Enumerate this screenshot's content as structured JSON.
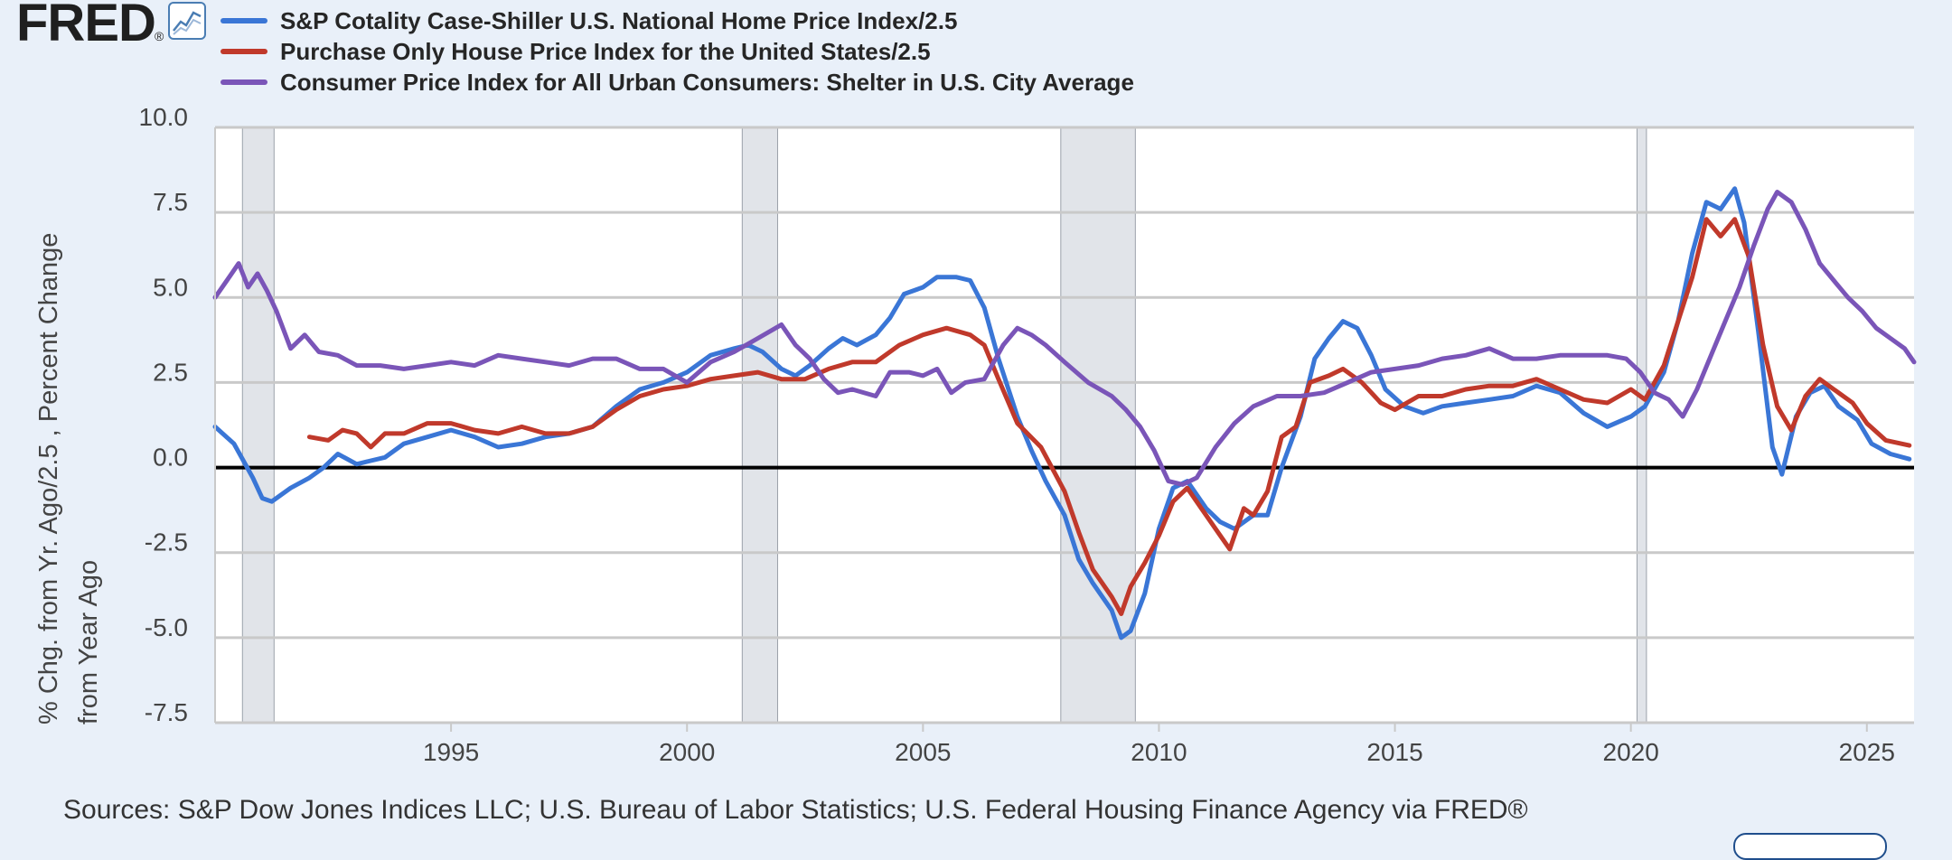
{
  "header": {
    "logo_text": "FRED",
    "logo_reg": "®",
    "graph_icon": "line-chart-icon"
  },
  "colors": {
    "background": "#e9f0f9",
    "plot_area": "#ffffff",
    "recession": "#e1e4e9",
    "series_blue": "#3a76d6",
    "series_red": "#c0392b",
    "series_purple": "#7a55b8"
  },
  "y_axis_title_line1": "% Chg. from Yr. Ago/2.5 , Percent Change",
  "y_axis_title_line2": "from Year Ago",
  "source_note": "Sources: S&P Dow Jones Indices LLC; U.S. Bureau of Labor Statistics; U.S. Federal Housing Finance Agency via FRED®",
  "chart_data": {
    "type": "line",
    "title": "",
    "xlabel": "",
    "ylabel": "% Chg. from Yr. Ago/2.5 , Percent Change from Year Ago",
    "xlim": [
      1990.0,
      2026.0
    ],
    "ylim": [
      -7.5,
      10.0
    ],
    "yticks": [
      "10.0",
      "7.5",
      "5.0",
      "2.5",
      "0.0",
      "-2.5",
      "-5.0",
      "-7.5"
    ],
    "ytick_values": [
      10,
      7.5,
      5,
      2.5,
      0,
      -2.5,
      -5,
      -7.5
    ],
    "xticks": [
      "1995",
      "2000",
      "2005",
      "2010",
      "2015",
      "2020",
      "2025"
    ],
    "xtick_values": [
      1995,
      2000,
      2005,
      2010,
      2015,
      2020,
      2025
    ],
    "grid": true,
    "legend_position": "top-left",
    "recessions": [
      [
        1990.58,
        1991.25
      ],
      [
        2001.17,
        2001.92
      ],
      [
        2007.92,
        2009.5
      ],
      [
        2020.13,
        2020.33
      ]
    ],
    "series": [
      {
        "name": "S&P Cotality Case-Shiller U.S. National Home Price Index/2.5",
        "color": "#3a76d6",
        "points": [
          [
            1990.0,
            1.2
          ],
          [
            1990.4,
            0.7
          ],
          [
            1990.8,
            -0.3
          ],
          [
            1991.0,
            -0.9
          ],
          [
            1991.2,
            -1.0
          ],
          [
            1991.6,
            -0.6
          ],
          [
            1992.0,
            -0.3
          ],
          [
            1992.3,
            0.0
          ],
          [
            1992.6,
            0.4
          ],
          [
            1993.0,
            0.1
          ],
          [
            1993.3,
            0.2
          ],
          [
            1993.6,
            0.3
          ],
          [
            1994.0,
            0.7
          ],
          [
            1994.5,
            0.9
          ],
          [
            1995.0,
            1.1
          ],
          [
            1995.5,
            0.9
          ],
          [
            1996.0,
            0.6
          ],
          [
            1996.5,
            0.7
          ],
          [
            1997.0,
            0.9
          ],
          [
            1997.5,
            1.0
          ],
          [
            1998.0,
            1.2
          ],
          [
            1998.5,
            1.8
          ],
          [
            1999.0,
            2.3
          ],
          [
            1999.5,
            2.5
          ],
          [
            2000.0,
            2.8
          ],
          [
            2000.5,
            3.3
          ],
          [
            2001.0,
            3.5
          ],
          [
            2001.3,
            3.6
          ],
          [
            2001.6,
            3.4
          ],
          [
            2002.0,
            2.9
          ],
          [
            2002.3,
            2.7
          ],
          [
            2002.6,
            3.0
          ],
          [
            2003.0,
            3.5
          ],
          [
            2003.3,
            3.8
          ],
          [
            2003.6,
            3.6
          ],
          [
            2004.0,
            3.9
          ],
          [
            2004.3,
            4.4
          ],
          [
            2004.6,
            5.1
          ],
          [
            2005.0,
            5.3
          ],
          [
            2005.3,
            5.6
          ],
          [
            2005.7,
            5.6
          ],
          [
            2006.0,
            5.5
          ],
          [
            2006.3,
            4.7
          ],
          [
            2006.6,
            3.2
          ],
          [
            2007.0,
            1.5
          ],
          [
            2007.3,
            0.5
          ],
          [
            2007.6,
            -0.4
          ],
          [
            2008.0,
            -1.4
          ],
          [
            2008.3,
            -2.7
          ],
          [
            2008.6,
            -3.4
          ],
          [
            2009.0,
            -4.2
          ],
          [
            2009.2,
            -5.0
          ],
          [
            2009.4,
            -4.8
          ],
          [
            2009.7,
            -3.7
          ],
          [
            2010.0,
            -1.8
          ],
          [
            2010.3,
            -0.6
          ],
          [
            2010.6,
            -0.4
          ],
          [
            2011.0,
            -1.2
          ],
          [
            2011.3,
            -1.6
          ],
          [
            2011.6,
            -1.8
          ],
          [
            2012.0,
            -1.4
          ],
          [
            2012.3,
            -1.4
          ],
          [
            2012.6,
            0.0
          ],
          [
            2013.0,
            1.5
          ],
          [
            2013.3,
            3.2
          ],
          [
            2013.6,
            3.8
          ],
          [
            2013.9,
            4.3
          ],
          [
            2014.2,
            4.1
          ],
          [
            2014.5,
            3.3
          ],
          [
            2014.8,
            2.3
          ],
          [
            2015.2,
            1.8
          ],
          [
            2015.6,
            1.6
          ],
          [
            2016.0,
            1.8
          ],
          [
            2016.5,
            1.9
          ],
          [
            2017.0,
            2.0
          ],
          [
            2017.5,
            2.1
          ],
          [
            2018.0,
            2.4
          ],
          [
            2018.5,
            2.2
          ],
          [
            2019.0,
            1.6
          ],
          [
            2019.5,
            1.2
          ],
          [
            2020.0,
            1.5
          ],
          [
            2020.3,
            1.8
          ],
          [
            2020.7,
            2.8
          ],
          [
            2021.0,
            4.3
          ],
          [
            2021.3,
            6.3
          ],
          [
            2021.6,
            7.8
          ],
          [
            2021.9,
            7.6
          ],
          [
            2022.2,
            8.2
          ],
          [
            2022.4,
            7.2
          ],
          [
            2022.7,
            4.0
          ],
          [
            2023.0,
            0.6
          ],
          [
            2023.2,
            -0.2
          ],
          [
            2023.5,
            1.5
          ],
          [
            2023.8,
            2.2
          ],
          [
            2024.1,
            2.4
          ],
          [
            2024.4,
            1.8
          ],
          [
            2024.8,
            1.4
          ],
          [
            2025.1,
            0.7
          ],
          [
            2025.5,
            0.4
          ],
          [
            2025.9,
            0.25
          ]
        ]
      },
      {
        "name": "Purchase Only House Price Index for the United States/2.5",
        "color": "#c0392b",
        "points": [
          [
            1992.0,
            0.9
          ],
          [
            1992.4,
            0.8
          ],
          [
            1992.7,
            1.1
          ],
          [
            1993.0,
            1.0
          ],
          [
            1993.3,
            0.6
          ],
          [
            1993.6,
            1.0
          ],
          [
            1994.0,
            1.0
          ],
          [
            1994.5,
            1.3
          ],
          [
            1995.0,
            1.3
          ],
          [
            1995.5,
            1.1
          ],
          [
            1996.0,
            1.0
          ],
          [
            1996.5,
            1.2
          ],
          [
            1997.0,
            1.0
          ],
          [
            1997.5,
            1.0
          ],
          [
            1998.0,
            1.2
          ],
          [
            1998.5,
            1.7
          ],
          [
            1999.0,
            2.1
          ],
          [
            1999.5,
            2.3
          ],
          [
            2000.0,
            2.4
          ],
          [
            2000.5,
            2.6
          ],
          [
            2001.0,
            2.7
          ],
          [
            2001.5,
            2.8
          ],
          [
            2002.0,
            2.6
          ],
          [
            2002.5,
            2.6
          ],
          [
            2003.0,
            2.9
          ],
          [
            2003.5,
            3.1
          ],
          [
            2004.0,
            3.1
          ],
          [
            2004.5,
            3.6
          ],
          [
            2005.0,
            3.9
          ],
          [
            2005.5,
            4.1
          ],
          [
            2006.0,
            3.9
          ],
          [
            2006.3,
            3.6
          ],
          [
            2006.6,
            2.6
          ],
          [
            2007.0,
            1.3
          ],
          [
            2007.5,
            0.6
          ],
          [
            2008.0,
            -0.7
          ],
          [
            2008.3,
            -1.9
          ],
          [
            2008.6,
            -3.0
          ],
          [
            2009.0,
            -3.8
          ],
          [
            2009.2,
            -4.3
          ],
          [
            2009.4,
            -3.5
          ],
          [
            2009.7,
            -2.8
          ],
          [
            2010.0,
            -2.0
          ],
          [
            2010.3,
            -1.0
          ],
          [
            2010.6,
            -0.6
          ],
          [
            2010.9,
            -1.2
          ],
          [
            2011.2,
            -1.8
          ],
          [
            2011.5,
            -2.4
          ],
          [
            2011.8,
            -1.2
          ],
          [
            2012.0,
            -1.4
          ],
          [
            2012.3,
            -0.7
          ],
          [
            2012.6,
            0.9
          ],
          [
            2012.9,
            1.2
          ],
          [
            2013.2,
            2.5
          ],
          [
            2013.6,
            2.7
          ],
          [
            2013.9,
            2.9
          ],
          [
            2014.3,
            2.5
          ],
          [
            2014.7,
            1.9
          ],
          [
            2015.0,
            1.7
          ],
          [
            2015.5,
            2.1
          ],
          [
            2016.0,
            2.1
          ],
          [
            2016.5,
            2.3
          ],
          [
            2017.0,
            2.4
          ],
          [
            2017.5,
            2.4
          ],
          [
            2018.0,
            2.6
          ],
          [
            2018.5,
            2.3
          ],
          [
            2019.0,
            2.0
          ],
          [
            2019.5,
            1.9
          ],
          [
            2020.0,
            2.3
          ],
          [
            2020.3,
            2.0
          ],
          [
            2020.7,
            3.0
          ],
          [
            2021.0,
            4.3
          ],
          [
            2021.3,
            5.6
          ],
          [
            2021.6,
            7.3
          ],
          [
            2021.9,
            6.8
          ],
          [
            2022.2,
            7.3
          ],
          [
            2022.5,
            6.2
          ],
          [
            2022.8,
            3.6
          ],
          [
            2023.1,
            1.8
          ],
          [
            2023.4,
            1.1
          ],
          [
            2023.7,
            2.1
          ],
          [
            2024.0,
            2.6
          ],
          [
            2024.3,
            2.3
          ],
          [
            2024.7,
            1.9
          ],
          [
            2025.0,
            1.3
          ],
          [
            2025.4,
            0.8
          ],
          [
            2025.9,
            0.65
          ]
        ]
      },
      {
        "name": "Consumer Price Index for All Urban Consumers: Shelter in U.S. City Average",
        "color": "#7a55b8",
        "points": [
          [
            1990.0,
            5.0
          ],
          [
            1990.3,
            5.6
          ],
          [
            1990.5,
            6.0
          ],
          [
            1990.7,
            5.3
          ],
          [
            1990.9,
            5.7
          ],
          [
            1991.1,
            5.2
          ],
          [
            1991.3,
            4.6
          ],
          [
            1991.6,
            3.5
          ],
          [
            1991.9,
            3.9
          ],
          [
            1992.2,
            3.4
          ],
          [
            1992.6,
            3.3
          ],
          [
            1993.0,
            3.0
          ],
          [
            1993.5,
            3.0
          ],
          [
            1994.0,
            2.9
          ],
          [
            1994.5,
            3.0
          ],
          [
            1995.0,
            3.1
          ],
          [
            1995.5,
            3.0
          ],
          [
            1996.0,
            3.3
          ],
          [
            1996.5,
            3.2
          ],
          [
            1997.0,
            3.1
          ],
          [
            1997.5,
            3.0
          ],
          [
            1998.0,
            3.2
          ],
          [
            1998.5,
            3.2
          ],
          [
            1999.0,
            2.9
          ],
          [
            1999.5,
            2.9
          ],
          [
            2000.0,
            2.5
          ],
          [
            2000.5,
            3.1
          ],
          [
            2001.0,
            3.4
          ],
          [
            2001.5,
            3.8
          ],
          [
            2002.0,
            4.2
          ],
          [
            2002.3,
            3.6
          ],
          [
            2002.6,
            3.2
          ],
          [
            2002.9,
            2.6
          ],
          [
            2003.2,
            2.2
          ],
          [
            2003.5,
            2.3
          ],
          [
            2004.0,
            2.1
          ],
          [
            2004.3,
            2.8
          ],
          [
            2004.7,
            2.8
          ],
          [
            2005.0,
            2.7
          ],
          [
            2005.3,
            2.9
          ],
          [
            2005.6,
            2.2
          ],
          [
            2005.9,
            2.5
          ],
          [
            2006.3,
            2.6
          ],
          [
            2006.7,
            3.6
          ],
          [
            2007.0,
            4.1
          ],
          [
            2007.3,
            3.9
          ],
          [
            2007.6,
            3.6
          ],
          [
            2008.0,
            3.1
          ],
          [
            2008.5,
            2.5
          ],
          [
            2009.0,
            2.1
          ],
          [
            2009.3,
            1.7
          ],
          [
            2009.6,
            1.2
          ],
          [
            2009.9,
            0.5
          ],
          [
            2010.2,
            -0.4
          ],
          [
            2010.5,
            -0.5
          ],
          [
            2010.8,
            -0.3
          ],
          [
            2011.2,
            0.6
          ],
          [
            2011.6,
            1.3
          ],
          [
            2012.0,
            1.8
          ],
          [
            2012.5,
            2.1
          ],
          [
            2013.0,
            2.1
          ],
          [
            2013.5,
            2.2
          ],
          [
            2014.0,
            2.5
          ],
          [
            2014.5,
            2.8
          ],
          [
            2015.0,
            2.9
          ],
          [
            2015.5,
            3.0
          ],
          [
            2016.0,
            3.2
          ],
          [
            2016.5,
            3.3
          ],
          [
            2017.0,
            3.5
          ],
          [
            2017.5,
            3.2
          ],
          [
            2018.0,
            3.2
          ],
          [
            2018.5,
            3.3
          ],
          [
            2019.0,
            3.3
          ],
          [
            2019.5,
            3.3
          ],
          [
            2019.9,
            3.2
          ],
          [
            2020.2,
            2.8
          ],
          [
            2020.5,
            2.2
          ],
          [
            2020.8,
            2.0
          ],
          [
            2021.1,
            1.5
          ],
          [
            2021.4,
            2.3
          ],
          [
            2021.7,
            3.3
          ],
          [
            2022.0,
            4.3
          ],
          [
            2022.3,
            5.3
          ],
          [
            2022.6,
            6.5
          ],
          [
            2022.9,
            7.6
          ],
          [
            2023.1,
            8.1
          ],
          [
            2023.4,
            7.8
          ],
          [
            2023.7,
            7.0
          ],
          [
            2024.0,
            6.0
          ],
          [
            2024.3,
            5.5
          ],
          [
            2024.6,
            5.0
          ],
          [
            2024.9,
            4.6
          ],
          [
            2025.2,
            4.1
          ],
          [
            2025.5,
            3.8
          ],
          [
            2025.8,
            3.5
          ],
          [
            2026.0,
            3.1
          ]
        ]
      }
    ],
    "zero_line": 0
  }
}
